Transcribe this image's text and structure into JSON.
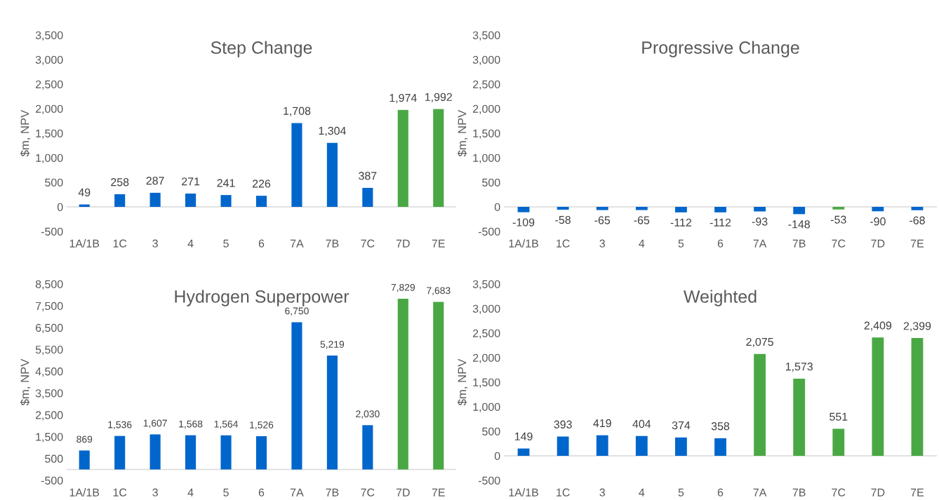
{
  "chart_data": [
    {
      "type": "bar",
      "title": "Step Change",
      "ylabel": "$m, NPV",
      "categories": [
        "1A/1B",
        "1C",
        "3",
        "4",
        "5",
        "6",
        "7A",
        "7B",
        "7C",
        "7D",
        "7E"
      ],
      "values": [
        49,
        258,
        287,
        271,
        241,
        226,
        1708,
        1304,
        387,
        1974,
        1992
      ],
      "value_labels": [
        "49",
        "258",
        "287",
        "271",
        "241",
        "226",
        "1,708",
        "1,304",
        "387",
        "1,974",
        "1,992"
      ],
      "colors": [
        "#0066cc",
        "#0066cc",
        "#0066cc",
        "#0066cc",
        "#0066cc",
        "#0066cc",
        "#0066cc",
        "#0066cc",
        "#0066cc",
        "#4aa844",
        "#4aa844"
      ],
      "ylim": [
        -500,
        3500
      ],
      "yticks": [
        {
          "value": -500,
          "label": "-500"
        },
        0,
        500,
        {
          "value": 1000,
          "label": "1,000"
        },
        {
          "value": 1500,
          "label": "1,500"
        },
        {
          "value": 2000,
          "label": "2,000"
        },
        {
          "value": 2500,
          "label": "2,500"
        },
        {
          "value": 3000,
          "label": "3,000"
        },
        {
          "value": 3500,
          "label": "3,500"
        }
      ]
    },
    {
      "type": "bar",
      "title": "Progressive Change",
      "ylabel": "$m, NPV",
      "categories": [
        "1A/1B",
        "1C",
        "3",
        "4",
        "5",
        "6",
        "7A",
        "7B",
        "7C",
        "7D",
        "7E"
      ],
      "values": [
        -109,
        -58,
        -65,
        -65,
        -112,
        -112,
        -93,
        -148,
        -53,
        -90,
        -68
      ],
      "value_labels": [
        "-109",
        "-58",
        "-65",
        "-65",
        "-112",
        "-112",
        "-93",
        "-148",
        "-53",
        "-90",
        "-68"
      ],
      "colors": [
        "#0066cc",
        "#0066cc",
        "#0066cc",
        "#0066cc",
        "#0066cc",
        "#0066cc",
        "#0066cc",
        "#0066cc",
        "#4aa844",
        "#0066cc",
        "#0066cc"
      ],
      "ylim": [
        -500,
        3500
      ],
      "yticks": [
        {
          "value": -500,
          "label": "-500"
        },
        0,
        500,
        {
          "value": 1000,
          "label": "1,000"
        },
        {
          "value": 1500,
          "label": "1,500"
        },
        {
          "value": 2000,
          "label": "2,000"
        },
        {
          "value": 2500,
          "label": "2,500"
        },
        {
          "value": 3000,
          "label": "3,000"
        },
        {
          "value": 3500,
          "label": "3,500"
        }
      ]
    },
    {
      "type": "bar",
      "title": "Hydrogen Superpower",
      "ylabel": "$m, NPV",
      "categories": [
        "1A/1B",
        "1C",
        "3",
        "4",
        "5",
        "6",
        "7A",
        "7B",
        "7C",
        "7D",
        "7E"
      ],
      "values": [
        869,
        1536,
        1607,
        1568,
        1564,
        1526,
        6750,
        5219,
        2030,
        7829,
        7683
      ],
      "value_labels": [
        "869",
        "1,536",
        "1,607",
        "1,568",
        "1,564",
        "1,526",
        "6,750",
        "5,219",
        "2,030",
        "7,829",
        "7,683"
      ],
      "colors": [
        "#0066cc",
        "#0066cc",
        "#0066cc",
        "#0066cc",
        "#0066cc",
        "#0066cc",
        "#0066cc",
        "#0066cc",
        "#0066cc",
        "#4aa844",
        "#4aa844"
      ],
      "ylim": [
        -500,
        8500
      ],
      "yticks": [
        {
          "value": -500,
          "label": "-500"
        },
        500,
        {
          "value": 1500,
          "label": "1,500"
        },
        {
          "value": 2500,
          "label": "2,500"
        },
        {
          "value": 3500,
          "label": "3,500"
        },
        {
          "value": 4500,
          "label": "4,500"
        },
        {
          "value": 5500,
          "label": "5,500"
        },
        {
          "value": 6500,
          "label": "6,500"
        },
        {
          "value": 7500,
          "label": "7,500"
        },
        {
          "value": 8500,
          "label": "8,500"
        }
      ]
    },
    {
      "type": "bar",
      "title": "Weighted",
      "ylabel": "$m, NPV",
      "categories": [
        "1A/1B",
        "1C",
        "3",
        "4",
        "5",
        "6",
        "7A",
        "7B",
        "7C",
        "7D",
        "7E"
      ],
      "values": [
        149,
        393,
        419,
        404,
        374,
        358,
        2075,
        1573,
        551,
        2409,
        2399
      ],
      "value_labels": [
        "149",
        "393",
        "419",
        "404",
        "374",
        "358",
        "2,075",
        "1,573",
        "551",
        "2,409",
        "2,399"
      ],
      "colors": [
        "#0066cc",
        "#0066cc",
        "#0066cc",
        "#0066cc",
        "#0066cc",
        "#0066cc",
        "#4aa844",
        "#4aa844",
        "#4aa844",
        "#4aa844",
        "#4aa844"
      ],
      "ylim": [
        -500,
        3500
      ],
      "yticks": [
        {
          "value": -500,
          "label": "-500"
        },
        0,
        500,
        {
          "value": 1000,
          "label": "1,000"
        },
        {
          "value": 1500,
          "label": "1,500"
        },
        {
          "value": 2000,
          "label": "2,000"
        },
        {
          "value": 2500,
          "label": "2,500"
        },
        {
          "value": 3000,
          "label": "3,000"
        },
        {
          "value": 3500,
          "label": "3,500"
        }
      ]
    }
  ]
}
